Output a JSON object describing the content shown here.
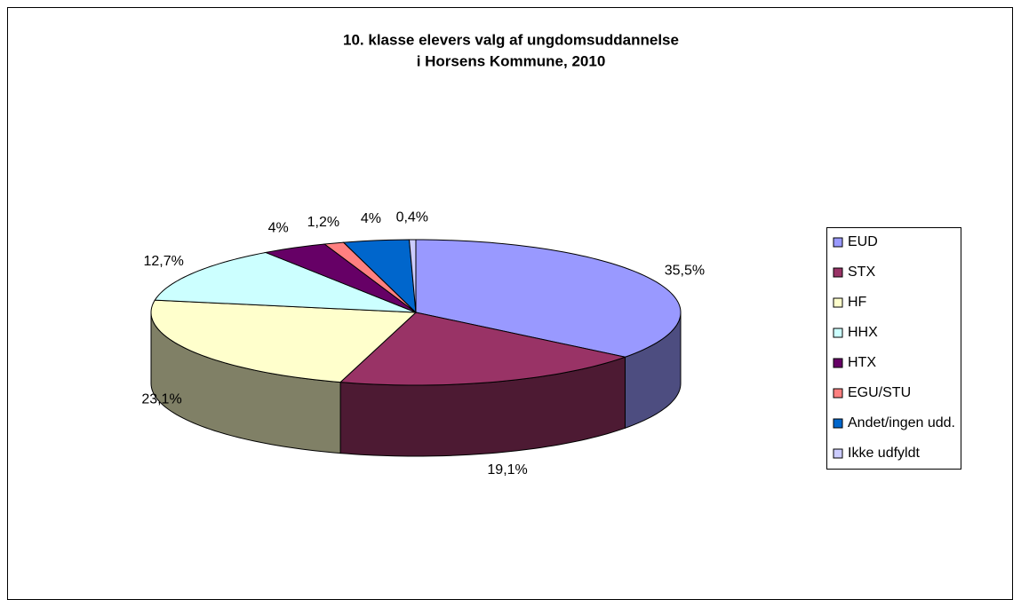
{
  "chart_data": {
    "type": "pie3d",
    "title": [
      "10. klasse elevers valg af ungdomsuddannelse",
      "i Horsens Kommune, 2010"
    ],
    "categories": [
      "EUD",
      "STX",
      "HF",
      "HHX",
      "HTX",
      "EGU/STU",
      "Andet/ingen udd.",
      "Ikke udfyldt"
    ],
    "values": [
      35.5,
      19.1,
      23.1,
      12.7,
      4,
      1.2,
      4,
      0.4
    ],
    "value_labels": [
      "35,5%",
      "19,1%",
      "23,1%",
      "12,7%",
      "4%",
      "1,2%",
      "4%",
      "0,4%"
    ],
    "colors": [
      "#9999ff",
      "#993366",
      "#ffffcc",
      "#ccffff",
      "#660066",
      "#ff8080",
      "#0066cc",
      "#ccccff"
    ],
    "legend": "right"
  }
}
